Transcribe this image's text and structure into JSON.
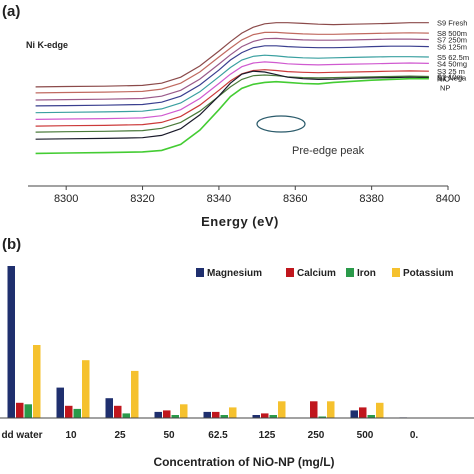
{
  "chart_data": [
    {
      "type": "line",
      "panel_label": "(a)",
      "annotation": "Ni K-edge",
      "peak_annotation": "Pre-edge peak",
      "xlabel": "Energy (eV)",
      "ylabel": "",
      "xlim": [
        8290,
        8400
      ],
      "x_ticks": [
        "8300",
        "8320",
        "8340",
        "8360",
        "8380",
        "8400"
      ],
      "grid": false,
      "legend_placement": "right, at line ends",
      "x": [
        8292,
        8300,
        8310,
        8320,
        8325,
        8330,
        8335,
        8340,
        8343,
        8346,
        8349,
        8352,
        8355,
        8358,
        8362,
        8366,
        8370,
        8375,
        8380,
        8385,
        8390,
        8395
      ],
      "series": [
        {
          "name": "S9 Fresh",
          "color": "#8b4a4a",
          "values": [
            24.4,
            24.5,
            24.6,
            24.8,
            25.4,
            27.0,
            30.0,
            34.0,
            36.5,
            38.8,
            40.4,
            41.3,
            41.6,
            41.6,
            41.4,
            41.2,
            41.1,
            41.2,
            41.3,
            41.4,
            41.6,
            41.6
          ]
        },
        {
          "name": "S8 500m",
          "color": "#c06a60",
          "values": [
            22.8,
            22.9,
            23.0,
            23.2,
            23.8,
            25.4,
            28.4,
            32.4,
            34.8,
            37.0,
            38.4,
            39.0,
            39.0,
            38.8,
            38.6,
            38.5,
            38.5,
            38.6,
            38.7,
            38.8,
            38.9,
            38.8
          ]
        },
        {
          "name": "S7 250m",
          "color": "#9a5a8a",
          "values": [
            20.9,
            21.0,
            21.1,
            21.3,
            21.9,
            23.5,
            26.5,
            30.5,
            33.0,
            35.2,
            36.6,
            37.3,
            37.4,
            37.2,
            37.0,
            36.9,
            36.9,
            37.0,
            37.1,
            37.2,
            37.2,
            37.1
          ]
        },
        {
          "name": "S6 125m",
          "color": "#3a3f8f",
          "values": [
            19.3,
            19.4,
            19.5,
            19.7,
            20.3,
            21.9,
            24.9,
            28.9,
            31.6,
            33.6,
            34.9,
            35.4,
            35.4,
            35.2,
            35.0,
            34.9,
            34.9,
            35.0,
            35.2,
            35.3,
            35.3,
            35.2
          ]
        },
        {
          "name": "S5 62.5m",
          "color": "#3aa0a0",
          "values": [
            17.5,
            17.6,
            17.7,
            17.9,
            18.5,
            20.1,
            23.1,
            27.1,
            29.6,
            31.6,
            32.6,
            32.9,
            32.7,
            32.4,
            32.2,
            32.1,
            32.2,
            32.3,
            32.4,
            32.5,
            32.5,
            32.4
          ]
        },
        {
          "name": "S4 50mg",
          "color": "#d05ad0",
          "values": [
            15.7,
            15.8,
            15.9,
            16.1,
            16.7,
            18.3,
            21.3,
            25.3,
            27.8,
            29.8,
            30.8,
            31.1,
            30.9,
            30.6,
            30.4,
            30.3,
            30.4,
            30.5,
            30.6,
            30.7,
            30.8,
            30.7
          ]
        },
        {
          "name": "S3 25 m",
          "color": "#cc3a3a",
          "values": [
            13.9,
            14.0,
            14.1,
            14.3,
            14.9,
            16.5,
            19.5,
            23.5,
            26.0,
            27.9,
            28.8,
            29.0,
            28.8,
            28.5,
            28.3,
            28.2,
            28.3,
            28.4,
            28.5,
            28.6,
            28.7,
            28.6
          ]
        },
        {
          "name": "S2 10m",
          "color": "#4a7a3a",
          "values": [
            12.3,
            12.4,
            12.5,
            12.7,
            13.3,
            14.9,
            17.9,
            21.9,
            24.4,
            26.4,
            27.4,
            27.6,
            27.4,
            27.1,
            26.9,
            26.8,
            26.9,
            27.0,
            27.1,
            27.2,
            27.3,
            27.2
          ]
        },
        {
          "name": "S1 Nega",
          "color": "#1a1a2a",
          "values": [
            10.4,
            10.5,
            10.6,
            10.8,
            11.4,
            13.2,
            16.9,
            22.0,
            25.4,
            27.8,
            28.6,
            28.4,
            27.7,
            27.0,
            26.6,
            26.4,
            26.5,
            26.7,
            26.8,
            26.9,
            27.0,
            26.9
          ]
        },
        {
          "name": "NiO NP",
          "color": "#44cc33",
          "values": [
            6.6,
            6.7,
            6.8,
            7.0,
            7.4,
            9.0,
            12.8,
            18.3,
            21.8,
            24.0,
            25.1,
            25.6,
            25.8,
            25.6,
            25.3,
            25.2,
            25.6,
            25.9,
            26.2,
            26.4,
            26.6,
            26.6
          ]
        }
      ]
    },
    {
      "type": "bar",
      "panel_label": "(b)",
      "xlabel": "Concentration of NiO-NP (mg/L)",
      "ylabel": "",
      "grid": false,
      "legend_placement": "top-right",
      "categories": [
        "dd water",
        "10",
        "25",
        "50",
        "62.5",
        "125",
        "250",
        "500",
        "0."
      ],
      "series": [
        {
          "name": "Magnesium",
          "color": "#1f2f6e",
          "values": [
            100,
            20,
            13,
            4,
            4,
            2,
            0,
            5,
            0.4
          ]
        },
        {
          "name": "Calcium",
          "color": "#c0161d",
          "values": [
            10,
            8,
            8,
            5,
            4,
            3,
            11,
            7,
            0
          ]
        },
        {
          "name": "Iron",
          "color": "#2a9a4a",
          "values": [
            9,
            6,
            3,
            2,
            2,
            2,
            1,
            2,
            0
          ]
        },
        {
          "name": "Potassium",
          "color": "#f5c12e",
          "values": [
            48,
            38,
            31,
            9,
            7,
            11,
            11,
            10,
            0
          ]
        }
      ]
    }
  ]
}
